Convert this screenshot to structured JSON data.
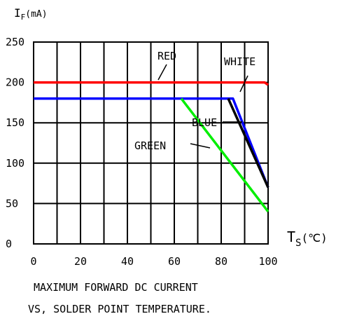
{
  "chart_data": {
    "type": "line",
    "ylabel_main": "I",
    "ylabel_sub": "F",
    "ylabel_unit": "(mA)",
    "xlabel_main": "T",
    "xlabel_sub": "S",
    "xlabel_unit": "(℃)",
    "xlim": [
      0,
      100
    ],
    "ylim": [
      0,
      250
    ],
    "x_ticks": [
      "0",
      "20",
      "40",
      "60",
      "80",
      "100"
    ],
    "y_ticks": [
      "0",
      "50",
      "100",
      "150",
      "200",
      "250"
    ],
    "grid": true,
    "caption_line1": "MAXIMUM FORWARD DC CURRENT",
    "caption_line2": "VS, SOLDER POINT TEMPERATURE.",
    "series": [
      {
        "name": "RED",
        "color": "#ff0000",
        "x": [
          0,
          98.5,
          100
        ],
        "y": [
          200,
          200,
          197
        ]
      },
      {
        "name": "BLUE",
        "color": "#0000ff",
        "x": [
          0,
          85,
          100
        ],
        "y": [
          180,
          180,
          70
        ]
      },
      {
        "name": "WHITE",
        "color": "#000000",
        "x": [
          83,
          100
        ],
        "y": [
          180,
          70
        ]
      },
      {
        "name": "GREEN",
        "color": "#00ee00",
        "x": [
          63,
          100
        ],
        "y": [
          180,
          40
        ]
      }
    ]
  }
}
